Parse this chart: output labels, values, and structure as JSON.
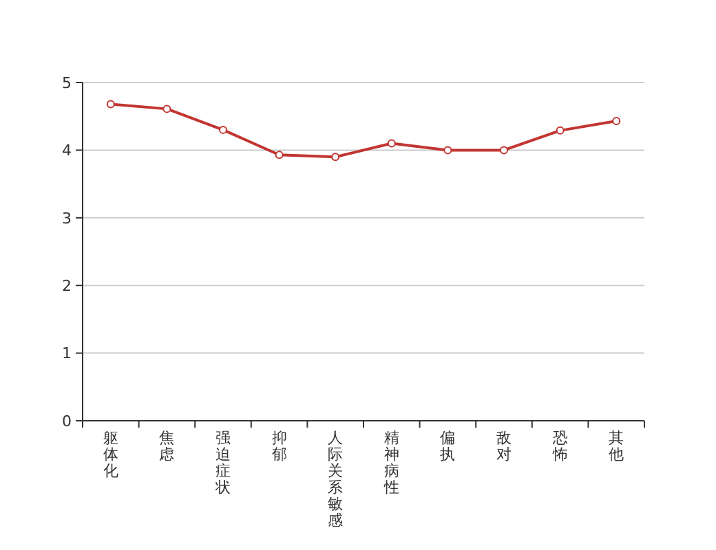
{
  "chart_data": {
    "type": "line",
    "categories": [
      "躯体化",
      "焦虑",
      "强迫症状",
      "抑郁",
      "人际关系敏感",
      "精神病性",
      "偏执",
      "敌对",
      "恐怖",
      "其他"
    ],
    "series": [
      {
        "color": "#c23531",
        "values": [
          4.68,
          4.61,
          4.3,
          3.93,
          3.9,
          4.1,
          4.0,
          4.0,
          4.29,
          4.43
        ]
      }
    ],
    "ylim": [
      0,
      5
    ],
    "yticks": [
      0,
      1,
      2,
      3,
      4,
      5
    ],
    "grid": "y",
    "marker": "circle",
    "line_style": "solid"
  }
}
